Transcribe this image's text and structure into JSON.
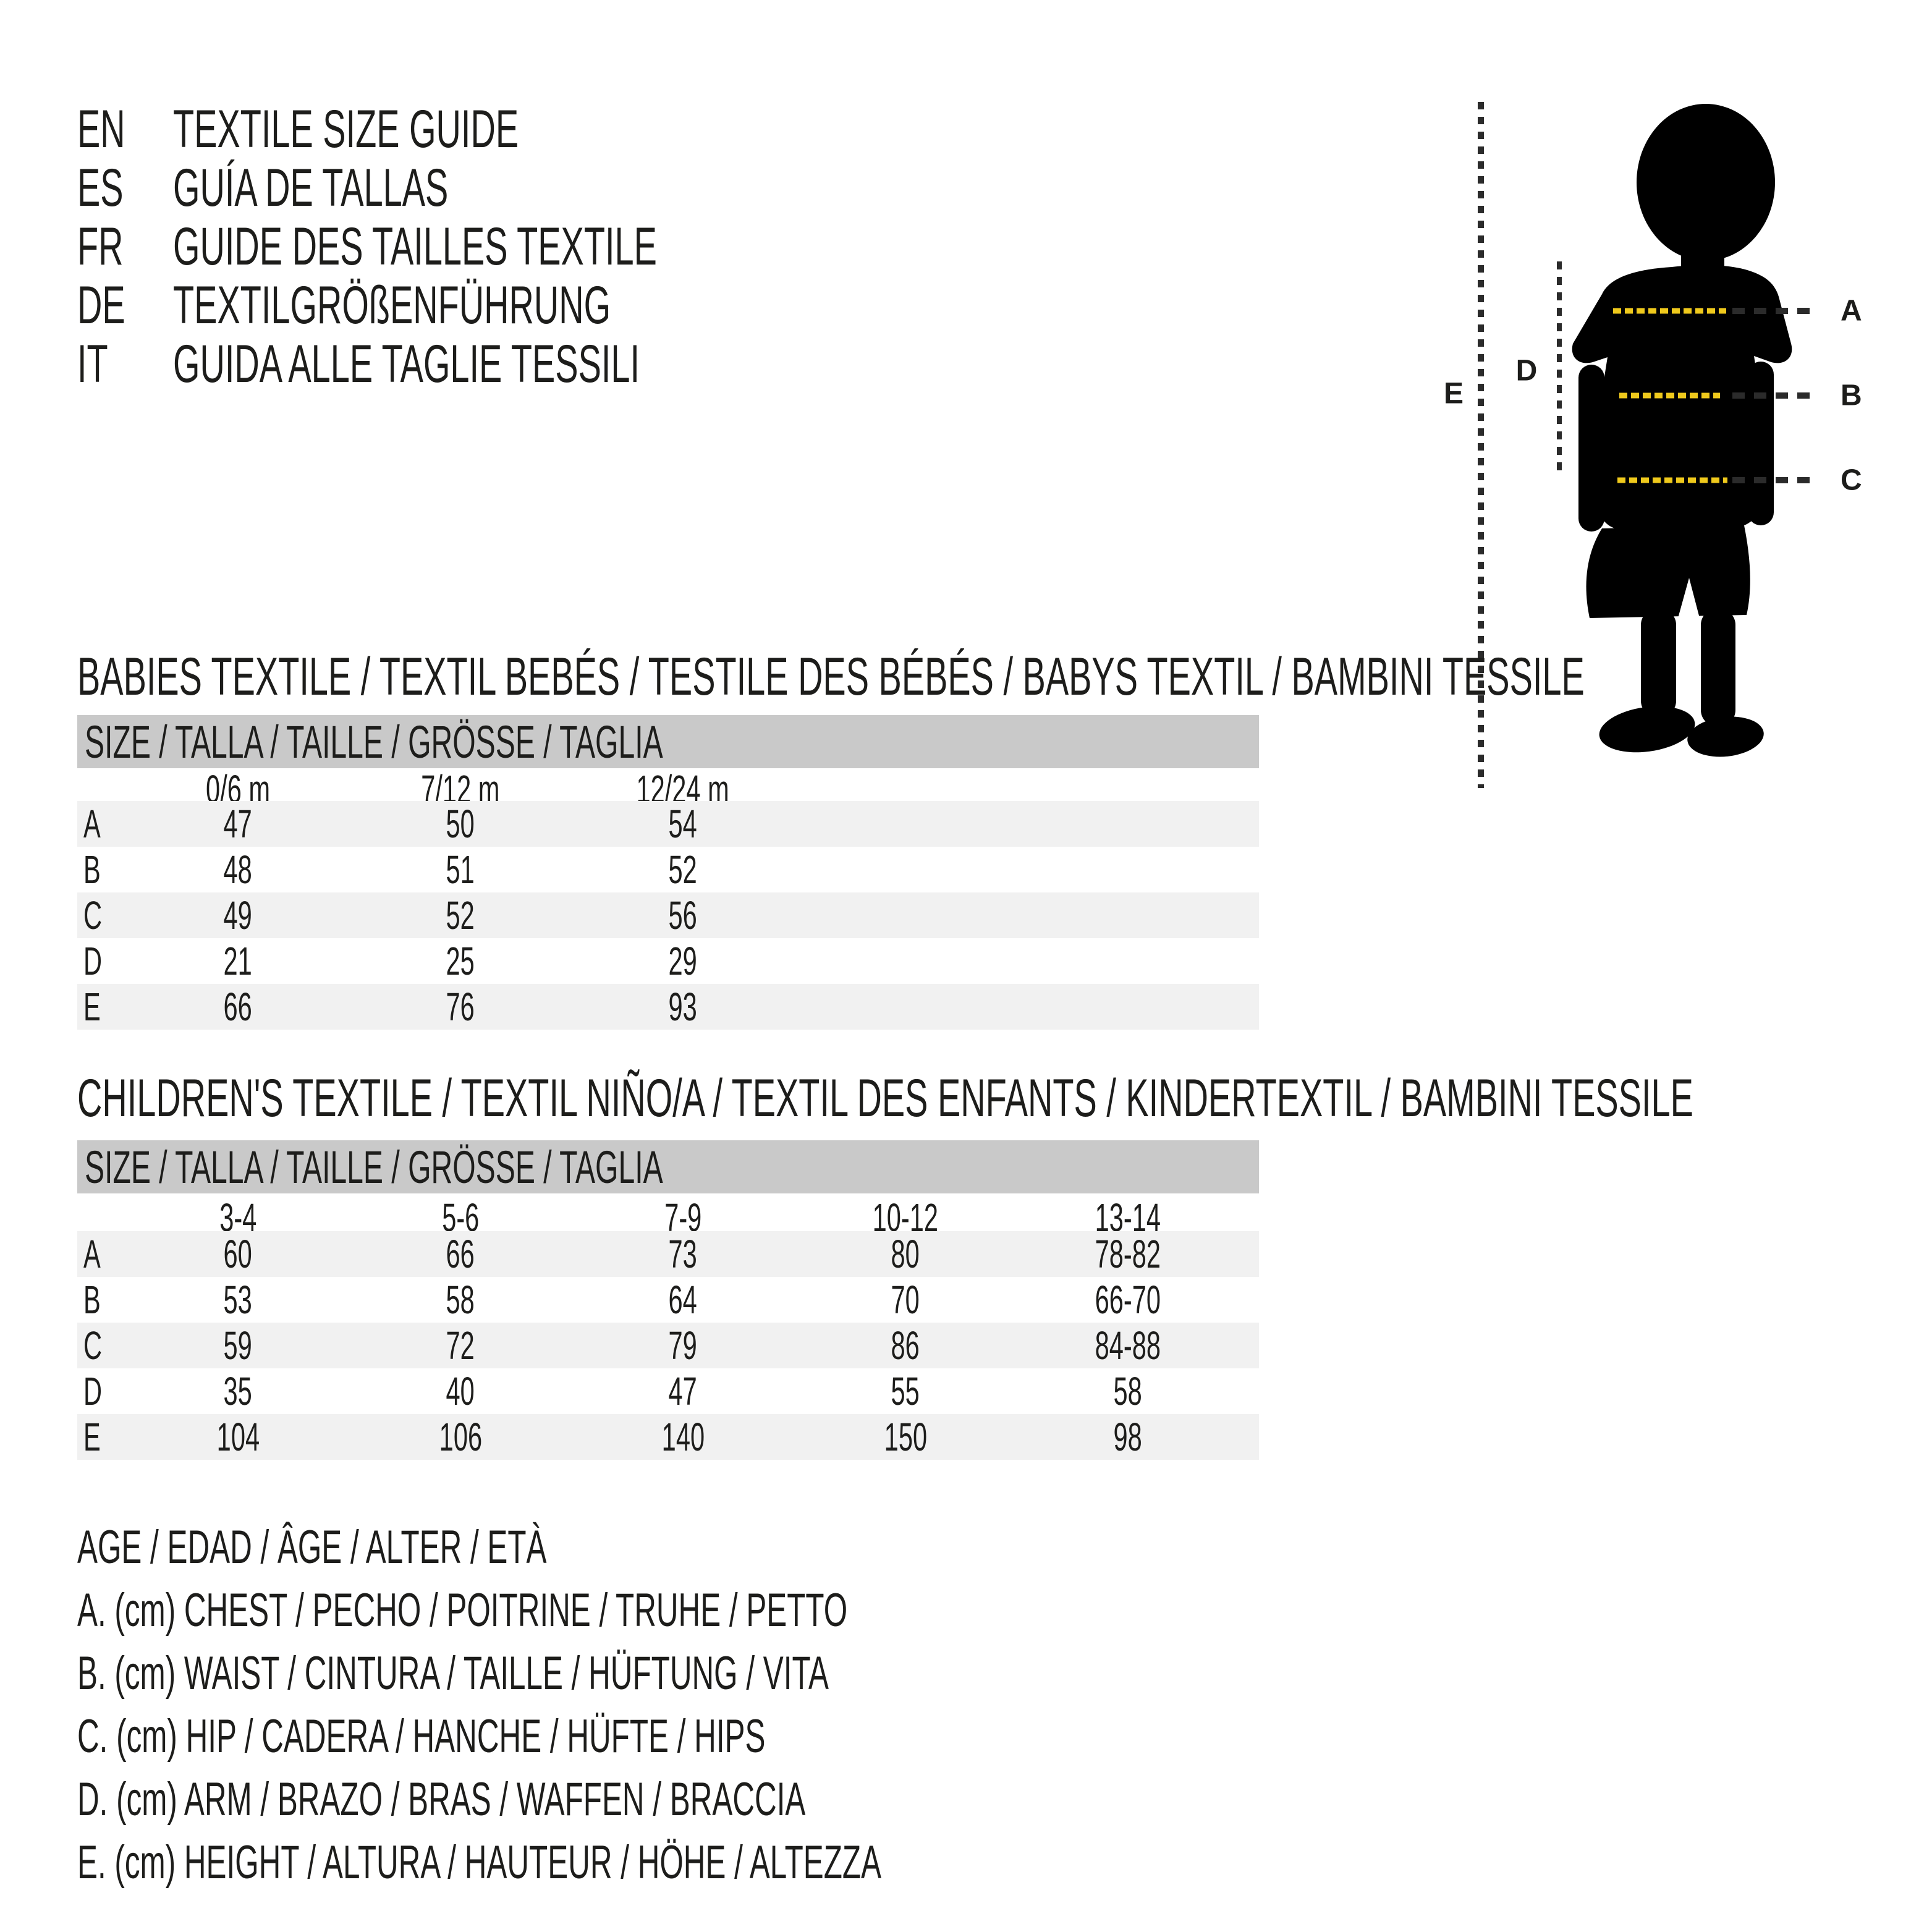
{
  "colors": {
    "ink": "#1d1d1b",
    "yellow": "#efc91c",
    "line": "#2b2b2b",
    "bar": "#c9c9c9",
    "stripe": "#f1f1f1",
    "silhouette": "#000000"
  },
  "header": {
    "languages": [
      {
        "code": "EN",
        "title": "TEXTILE SIZE GUIDE"
      },
      {
        "code": "ES",
        "title": "GUÍA DE TALLAS"
      },
      {
        "code": "FR",
        "title": "GUIDE DES TAILLES TEXTILE"
      },
      {
        "code": "DE",
        "title": "TEXTILGRÖßENFÜHRUNG"
      },
      {
        "code": "IT",
        "title": "GUIDA ALLE TAGLIE TESSILI"
      }
    ]
  },
  "figure": {
    "measure_labels": [
      "A",
      "B",
      "C",
      "D",
      "E"
    ]
  },
  "babies_section": {
    "title": "BABIES TEXTILE / TEXTIL BEBÉS / TESTILE DES BÉBÉS / BABYS TEXTIL / BAMBINI TESSILE",
    "table": {
      "size_header": "SIZE / TALLA / TAILLE / GRÖSSE / TAGLIA",
      "col_headers": [
        "0/6 m",
        "7/12 m",
        "12/24 m"
      ],
      "rows": [
        {
          "label": "A",
          "values": [
            "47",
            "50",
            "54"
          ]
        },
        {
          "label": "B",
          "values": [
            "48",
            "51",
            "52"
          ]
        },
        {
          "label": "C",
          "values": [
            "49",
            "52",
            "56"
          ]
        },
        {
          "label": "D",
          "values": [
            "21",
            "25",
            "29"
          ]
        },
        {
          "label": "E",
          "values": [
            "66",
            "76",
            "93"
          ]
        }
      ]
    }
  },
  "children_section": {
    "title": "CHILDREN'S TEXTILE / TEXTIL NIÑO/A / TEXTIL DES ENFANTS / KINDERTEXTIL / BAMBINI TESSILE",
    "table": {
      "size_header": "SIZE / TALLA / TAILLE / GRÖSSE / TAGLIA",
      "col_headers": [
        "3-4",
        "5-6",
        "7-9",
        "10-12",
        "13-14"
      ],
      "rows": [
        {
          "label": "A",
          "values": [
            "60",
            "66",
            "73",
            "80",
            "78-82"
          ]
        },
        {
          "label": "B",
          "values": [
            "53",
            "58",
            "64",
            "70",
            "66-70"
          ]
        },
        {
          "label": "C",
          "values": [
            "59",
            "72",
            "79",
            "86",
            "84-88"
          ]
        },
        {
          "label": "D",
          "values": [
            "35",
            "40",
            "47",
            "55",
            "58"
          ]
        },
        {
          "label": "E",
          "values": [
            "104",
            "106",
            "140",
            "150",
            "98"
          ]
        }
      ]
    }
  },
  "legend": {
    "lines": [
      "AGE / EDAD / ÂGE / ALTER / ETÀ",
      "A. (cm) CHEST / PECHO / POITRINE / TRUHE / PETTO",
      "B. (cm) WAIST / CINTURA / TAILLE / HÜFTUNG / VITA",
      "C. (cm) HIP / CADERA / HANCHE / HÜFTE / HIPS",
      "D. (cm) ARM / BRAZO / BRAS / WAFFEN / BRACCIA",
      "E. (cm) HEIGHT / ALTURA / HAUTEUR / HÖHE / ALTEZZA"
    ]
  }
}
